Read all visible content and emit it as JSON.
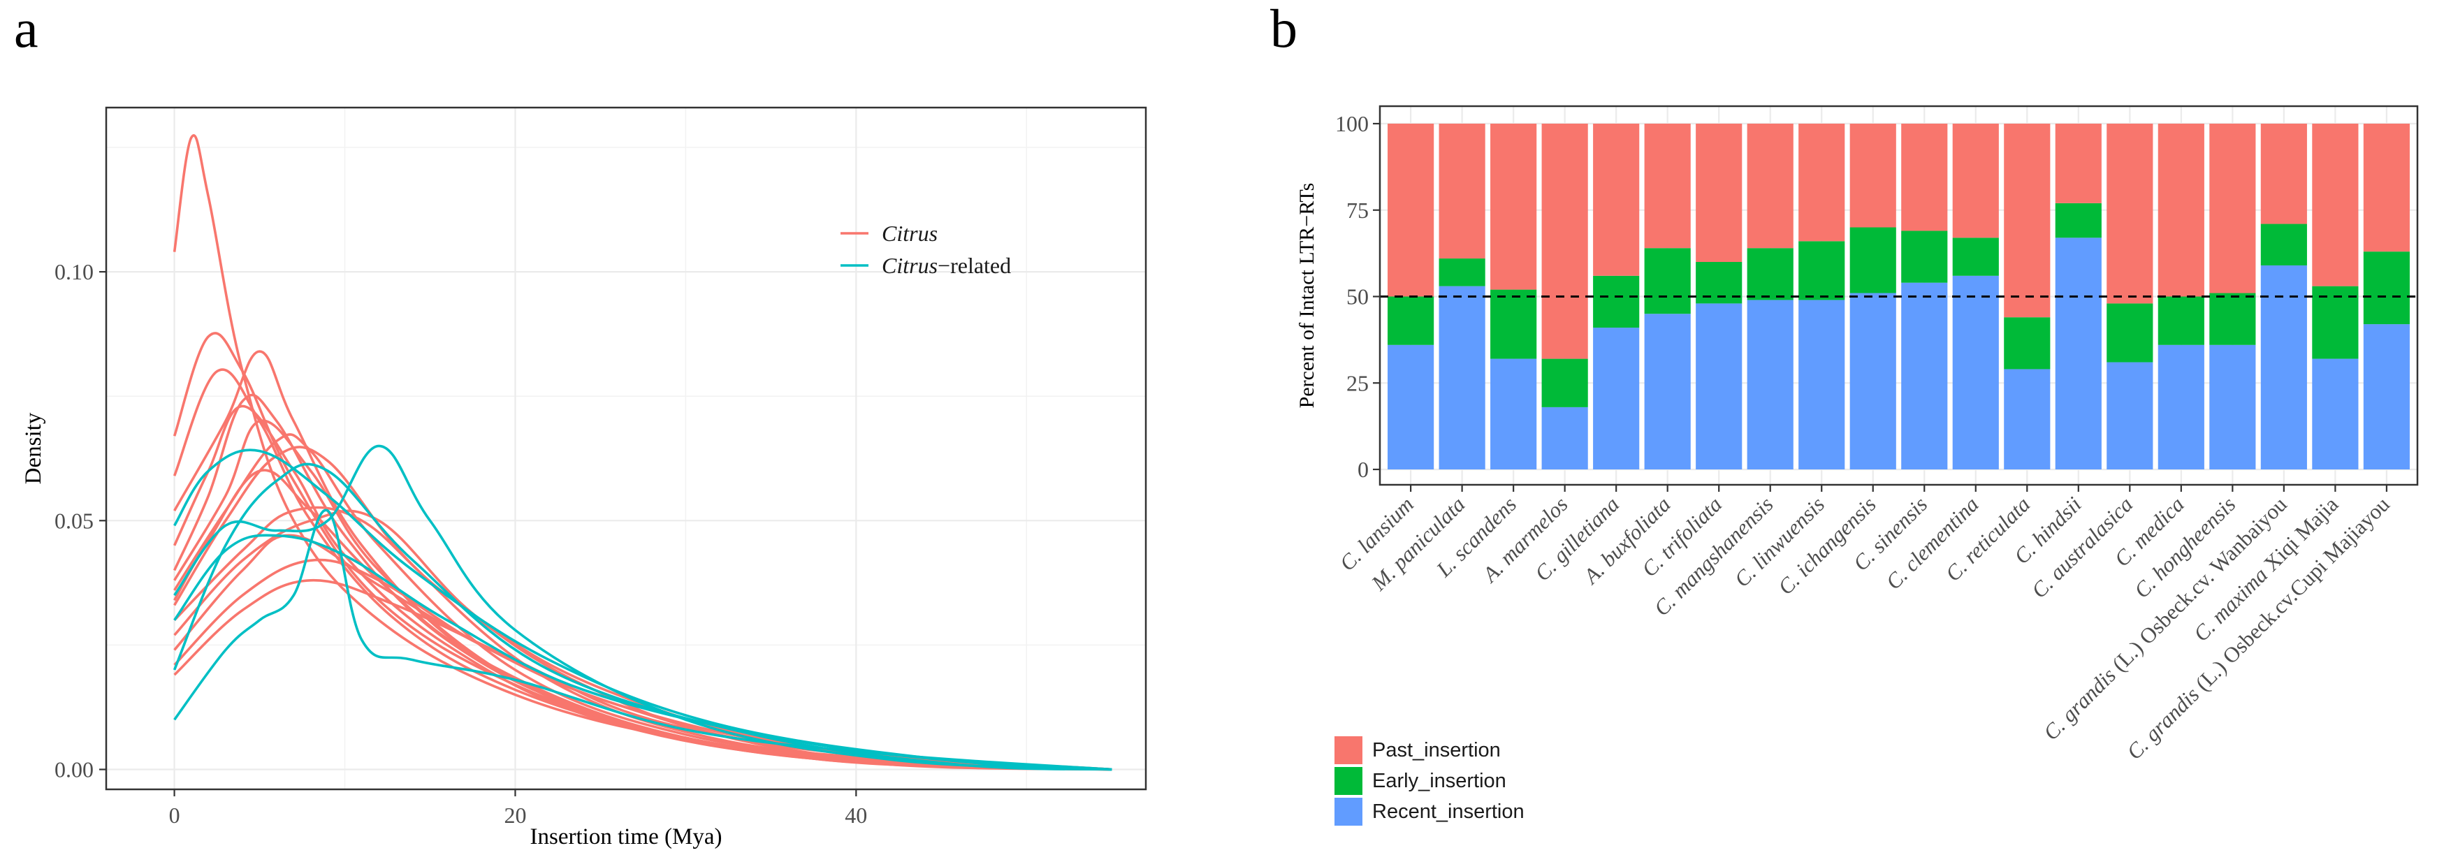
{
  "panel_labels": {
    "a": "a",
    "b": "b"
  },
  "colors": {
    "citrus": "#F8766D",
    "citrus_related": "#00BFC4",
    "past": "#F8766D",
    "early": "#00BA38",
    "recent": "#619CFF"
  },
  "chart_data": [
    {
      "type": "line",
      "subtype": "density",
      "xlabel": "Insertion time (Mya)",
      "ylabel": "Density",
      "xlim": [
        -4,
        57
      ],
      "ylim": [
        -0.004,
        0.133
      ],
      "x_ticks": [
        0,
        20,
        40
      ],
      "x_tick_labels": [
        "0",
        "20",
        "40"
      ],
      "y_ticks": [
        0.0,
        0.05,
        0.1
      ],
      "y_tick_labels": [
        "0.00",
        "0.05",
        "0.10"
      ],
      "grid": true,
      "legend": {
        "position": "top-right",
        "items": [
          {
            "italic": "Citrus",
            "suffix": ""
          },
          {
            "italic": "Citrus",
            "suffix": "−related"
          }
        ]
      },
      "series": [
        {
          "group": "Citrus",
          "control": [
            [
              0,
              0.104
            ],
            [
              1,
              0.127
            ],
            [
              2,
              0.115
            ],
            [
              4,
              0.08
            ],
            [
              7,
              0.05
            ],
            [
              12,
              0.03
            ],
            [
              20,
              0.015
            ],
            [
              30,
              0.006
            ],
            [
              40,
              0.002
            ],
            [
              55,
              0.0
            ]
          ]
        },
        {
          "group": "Citrus",
          "control": [
            [
              0,
              0.067
            ],
            [
              2,
              0.087
            ],
            [
              4,
              0.08
            ],
            [
              7,
              0.058
            ],
            [
              12,
              0.034
            ],
            [
              20,
              0.017
            ],
            [
              30,
              0.006
            ],
            [
              40,
              0.002
            ],
            [
              55,
              0.0
            ]
          ]
        },
        {
          "group": "Citrus",
          "control": [
            [
              0,
              0.059
            ],
            [
              2.5,
              0.08
            ],
            [
              5,
              0.07
            ],
            [
              8,
              0.05
            ],
            [
              13,
              0.03
            ],
            [
              20,
              0.016
            ],
            [
              30,
              0.006
            ],
            [
              40,
              0.002
            ],
            [
              55,
              0.0
            ]
          ]
        },
        {
          "group": "Citrus",
          "control": [
            [
              0,
              0.052
            ],
            [
              3,
              0.07
            ],
            [
              5,
              0.084
            ],
            [
              7,
              0.07
            ],
            [
              11,
              0.045
            ],
            [
              18,
              0.022
            ],
            [
              28,
              0.008
            ],
            [
              40,
              0.002
            ],
            [
              55,
              0.0
            ]
          ]
        },
        {
          "group": "Citrus",
          "control": [
            [
              0,
              0.04
            ],
            [
              2,
              0.055
            ],
            [
              4,
              0.074
            ],
            [
              6,
              0.07
            ],
            [
              10,
              0.047
            ],
            [
              16,
              0.026
            ],
            [
              25,
              0.011
            ],
            [
              38,
              0.002
            ],
            [
              55,
              0.0
            ]
          ]
        },
        {
          "group": "Citrus",
          "control": [
            [
              0,
              0.036
            ],
            [
              3,
              0.052
            ],
            [
              6,
              0.066
            ],
            [
              8,
              0.064
            ],
            [
              12,
              0.045
            ],
            [
              20,
              0.02
            ],
            [
              30,
              0.007
            ],
            [
              42,
              0.002
            ],
            [
              55,
              0.0
            ]
          ]
        },
        {
          "group": "Citrus",
          "control": [
            [
              0,
              0.033
            ],
            [
              3,
              0.05
            ],
            [
              6,
              0.063
            ],
            [
              9,
              0.062
            ],
            [
              14,
              0.041
            ],
            [
              22,
              0.018
            ],
            [
              32,
              0.006
            ],
            [
              45,
              0.001
            ],
            [
              55,
              0.0
            ]
          ]
        },
        {
          "group": "Citrus",
          "control": [
            [
              0,
              0.03
            ],
            [
              4,
              0.044
            ],
            [
              7,
              0.052
            ],
            [
              11,
              0.05
            ],
            [
              16,
              0.035
            ],
            [
              24,
              0.017
            ],
            [
              35,
              0.005
            ],
            [
              55,
              0.0
            ]
          ]
        },
        {
          "group": "Citrus",
          "control": [
            [
              0,
              0.027
            ],
            [
              4,
              0.042
            ],
            [
              8,
              0.05
            ],
            [
              12,
              0.05
            ],
            [
              18,
              0.03
            ],
            [
              26,
              0.015
            ],
            [
              38,
              0.004
            ],
            [
              55,
              0.0
            ]
          ]
        },
        {
          "group": "Citrus",
          "control": [
            [
              0,
              0.024
            ],
            [
              4,
              0.04
            ],
            [
              7,
              0.047
            ],
            [
              12,
              0.037
            ],
            [
              18,
              0.025
            ],
            [
              26,
              0.013
            ],
            [
              38,
              0.004
            ],
            [
              55,
              0.0
            ]
          ]
        },
        {
          "group": "Citrus",
          "control": [
            [
              0,
              0.034
            ],
            [
              2,
              0.046
            ],
            [
              5,
              0.06
            ],
            [
              8,
              0.052
            ],
            [
              12,
              0.038
            ],
            [
              18,
              0.022
            ],
            [
              28,
              0.008
            ],
            [
              40,
              0.002
            ],
            [
              55,
              0.0
            ]
          ]
        },
        {
          "group": "Citrus",
          "control": [
            [
              0,
              0.021
            ],
            [
              4,
              0.035
            ],
            [
              8,
              0.042
            ],
            [
              12,
              0.038
            ],
            [
              18,
              0.025
            ],
            [
              26,
              0.013
            ],
            [
              38,
              0.003
            ],
            [
              55,
              0.0
            ]
          ]
        },
        {
          "group": "Citrus",
          "control": [
            [
              0,
              0.019
            ],
            [
              4,
              0.032
            ],
            [
              8,
              0.038
            ],
            [
              13,
              0.033
            ],
            [
              20,
              0.022
            ],
            [
              28,
              0.01
            ],
            [
              40,
              0.003
            ],
            [
              55,
              0.0
            ]
          ]
        },
        {
          "group": "Citrus",
          "control": [
            [
              0,
              0.045
            ],
            [
              2,
              0.06
            ],
            [
              4,
              0.073
            ],
            [
              7,
              0.06
            ],
            [
              10,
              0.043
            ],
            [
              16,
              0.025
            ],
            [
              25,
              0.01
            ],
            [
              38,
              0.002
            ],
            [
              55,
              0.0
            ]
          ]
        },
        {
          "group": "Citrus",
          "control": [
            [
              0,
              0.038
            ],
            [
              3,
              0.055
            ],
            [
              5,
              0.07
            ],
            [
              8,
              0.06
            ],
            [
              12,
              0.04
            ],
            [
              20,
              0.018
            ],
            [
              30,
              0.006
            ],
            [
              42,
              0.001
            ],
            [
              55,
              0.0
            ]
          ]
        },
        {
          "group": "Citrus-related",
          "control": [
            [
              0,
              0.049
            ],
            [
              2,
              0.06
            ],
            [
              5,
              0.064
            ],
            [
              9,
              0.055
            ],
            [
              14,
              0.04
            ],
            [
              22,
              0.022
            ],
            [
              32,
              0.009
            ],
            [
              45,
              0.002
            ],
            [
              55,
              0.0
            ]
          ]
        },
        {
          "group": "Citrus-related",
          "control": [
            [
              0,
              0.02
            ],
            [
              3,
              0.045
            ],
            [
              6,
              0.058
            ],
            [
              9,
              0.06
            ],
            [
              14,
              0.042
            ],
            [
              22,
              0.02
            ],
            [
              34,
              0.007
            ],
            [
              46,
              0.001
            ],
            [
              55,
              0.0
            ]
          ]
        },
        {
          "group": "Citrus-related",
          "control": [
            [
              0,
              0.035
            ],
            [
              3,
              0.049
            ],
            [
              6,
              0.048
            ],
            [
              9,
              0.05
            ],
            [
              12,
              0.065
            ],
            [
              15,
              0.05
            ],
            [
              20,
              0.028
            ],
            [
              30,
              0.01
            ],
            [
              42,
              0.002
            ],
            [
              55,
              0.0
            ]
          ]
        },
        {
          "group": "Citrus-related",
          "control": [
            [
              0,
              0.01
            ],
            [
              3,
              0.024
            ],
            [
              5,
              0.03
            ],
            [
              7,
              0.035
            ],
            [
              9,
              0.052
            ],
            [
              11,
              0.026
            ],
            [
              14,
              0.022
            ],
            [
              20,
              0.018
            ],
            [
              30,
              0.008
            ],
            [
              42,
              0.003
            ],
            [
              55,
              0.0
            ]
          ]
        },
        {
          "group": "Citrus-related",
          "control": [
            [
              0,
              0.03
            ],
            [
              3,
              0.044
            ],
            [
              6,
              0.047
            ],
            [
              10,
              0.043
            ],
            [
              16,
              0.03
            ],
            [
              24,
              0.016
            ],
            [
              36,
              0.006
            ],
            [
              48,
              0.001
            ],
            [
              55,
              0.0
            ]
          ]
        }
      ]
    },
    {
      "type": "bar",
      "stacked": true,
      "ylabel": "Percent of Intact LTR−RTs",
      "ylim": [
        0,
        100
      ],
      "y_ticks": [
        0,
        25,
        50,
        75,
        100
      ],
      "y_tick_labels": [
        "0",
        "25",
        "50",
        "75",
        "100"
      ],
      "reference_line": 50,
      "grid": true,
      "categories": [
        "C. lansium",
        "M. paniculata",
        "L. scandens",
        "A. marmelos",
        "C. gilletiana",
        "A. buxfoliata",
        "C. trifoliata",
        "C. mangshanensis",
        "C. linwuensis",
        "C. ichangensis",
        "C. sinensis",
        "C. clementina",
        "C. reticulata",
        "C. hindsii",
        "C. australasica",
        "C. medica",
        "C. hongheensis",
        "C. grandis (L.) Osbeck.cv. Wanbaiyou",
        "C. maxima Xiqi Majia",
        "C. grandis (L.) Osbeck.cv.Cupi Majiayou"
      ],
      "category_labels": [
        {
          "italic": "C. lansium",
          "rest": ""
        },
        {
          "italic": "M. paniculata",
          "rest": ""
        },
        {
          "italic": "L. scandens",
          "rest": ""
        },
        {
          "italic": "A. marmelos",
          "rest": ""
        },
        {
          "italic": "C. gilletiana",
          "rest": ""
        },
        {
          "italic": "A. buxfoliata",
          "rest": ""
        },
        {
          "italic": "C. trifoliata",
          "rest": ""
        },
        {
          "italic": "C. mangshanensis",
          "rest": ""
        },
        {
          "italic": "C. linwuensis",
          "rest": ""
        },
        {
          "italic": "C. ichangensis",
          "rest": ""
        },
        {
          "italic": "C. sinensis",
          "rest": ""
        },
        {
          "italic": "C. clementina",
          "rest": ""
        },
        {
          "italic": "C. reticulata",
          "rest": ""
        },
        {
          "italic": "C. hindsii",
          "rest": ""
        },
        {
          "italic": "C. australasica",
          "rest": ""
        },
        {
          "italic": "C. medica",
          "rest": ""
        },
        {
          "italic": "C. hongheensis",
          "rest": ""
        },
        {
          "italic": "C. grandis",
          "rest": " (L.) Osbeck.cv. Wanbaiyou"
        },
        {
          "italic": "C. maxima",
          "rest": " Xiqi Majia"
        },
        {
          "italic": "C. grandis",
          "rest": " (L.) Osbeck.cv.Cupi Majiayou"
        }
      ],
      "series": [
        {
          "name": "Recent_insertion",
          "values": [
            36,
            53,
            32,
            18,
            41,
            45,
            48,
            49,
            49,
            51,
            54,
            56,
            29,
            67,
            31,
            36,
            36,
            59,
            32,
            42
          ]
        },
        {
          "name": "Early_insertion",
          "values": [
            14,
            8,
            20,
            14,
            15,
            19,
            12,
            15,
            17,
            19,
            15,
            11,
            15,
            10,
            17,
            14,
            15,
            12,
            21,
            21
          ]
        },
        {
          "name": "Past_insertion",
          "values": [
            50,
            39,
            48,
            68,
            44,
            36,
            40,
            36,
            34,
            30,
            31,
            33,
            56,
            23,
            52,
            50,
            49,
            29,
            47,
            37
          ]
        }
      ],
      "legend": {
        "position": "bottom-left",
        "items": [
          "Past_insertion",
          "Early_insertion",
          "Recent_insertion"
        ]
      }
    }
  ]
}
